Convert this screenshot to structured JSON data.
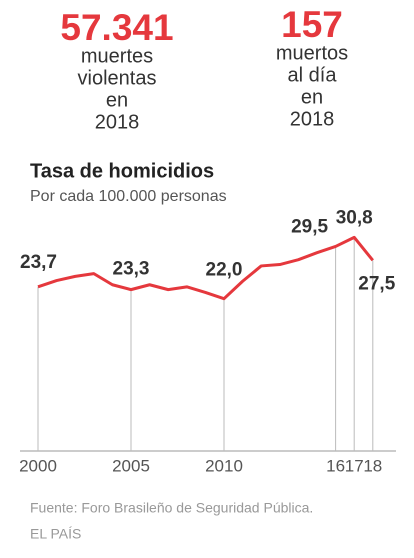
{
  "stats": [
    {
      "value": "57.341",
      "label": [
        "muertes",
        "violentas",
        "en",
        "2018"
      ]
    },
    {
      "value": "157",
      "label": [
        "muertos",
        "al día",
        "en",
        "2018"
      ]
    }
  ],
  "chart_data": {
    "type": "line",
    "title": "Tasa de homicidios",
    "subtitle": "Por cada 100.000 personas",
    "x": [
      2000,
      2001,
      2002,
      2003,
      2004,
      2005,
      2006,
      2007,
      2008,
      2009,
      2010,
      2011,
      2012,
      2013,
      2014,
      2015,
      2016,
      2017,
      2018
    ],
    "values": [
      23.7,
      24.6,
      25.2,
      25.6,
      24.0,
      23.3,
      24.0,
      23.3,
      23.7,
      22.9,
      22.0,
      24.5,
      26.7,
      26.9,
      27.6,
      28.6,
      29.5,
      30.8,
      27.5
    ],
    "value_labels": [
      "23,7",
      null,
      null,
      null,
      null,
      "23,3",
      null,
      null,
      null,
      null,
      "22,0",
      null,
      null,
      null,
      null,
      null,
      "29,5",
      "30,8",
      "27,5"
    ],
    "color": "#e5383d",
    "xlim": [
      2000,
      2018
    ],
    "xticks": [
      2000,
      2005,
      2010,
      {
        "value": 2016,
        "label": "16"
      },
      {
        "value": 2017,
        "label": "17"
      },
      {
        "value": 2018,
        "label": "18"
      }
    ],
    "ylim": [
      0,
      32
    ]
  },
  "source": "Fuente: Foro Brasileño de Seguridad Pública.",
  "brand": "EL PAÍS"
}
